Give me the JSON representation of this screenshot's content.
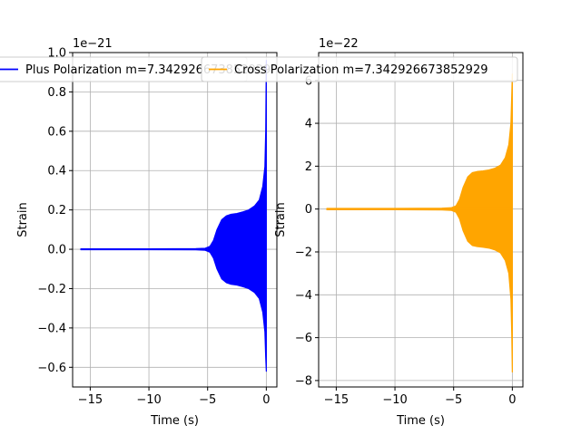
{
  "chart_data": [
    {
      "type": "line",
      "xlabel": "Time (s)",
      "ylabel": "Strain",
      "offset_text": "1e−21",
      "xlim": [
        -16.5,
        0.9
      ],
      "ylim": [
        -0.7,
        1.0
      ],
      "xticks": [
        -15,
        -10,
        -5,
        0
      ],
      "xtick_labels": [
        "−15",
        "−10",
        "−5",
        "0"
      ],
      "yticks": [
        -0.6,
        -0.4,
        -0.2,
        0.0,
        0.2,
        0.4,
        0.6,
        0.8,
        1.0
      ],
      "ytick_labels": [
        "−0.6",
        "−0.4",
        "−0.2",
        "0.0",
        "0.2",
        "0.4",
        "0.6",
        "0.8",
        "1.0"
      ],
      "grid": true,
      "legend_position": "top",
      "series": [
        {
          "name": "Plus Polarization m=7.342926673852929",
          "color": "#0000ff",
          "envelope": {
            "x": [
              -15.8,
              -10,
              -6,
              -5.2,
              -4.8,
              -4.5,
              -4.2,
              -3.8,
              -3.4,
              -3.0,
              -2.5,
              -2.0,
              -1.5,
              -1.0,
              -0.6,
              -0.3,
              -0.12,
              -0.05,
              0.0
            ],
            "upper": [
              0.002,
              0.002,
              0.003,
              0.005,
              0.015,
              0.045,
              0.1,
              0.15,
              0.17,
              0.178,
              0.182,
              0.19,
              0.2,
              0.22,
              0.25,
              0.32,
              0.42,
              0.6,
              0.96
            ],
            "lower": [
              -0.002,
              -0.002,
              -0.003,
              -0.005,
              -0.015,
              -0.045,
              -0.1,
              -0.15,
              -0.17,
              -0.178,
              -0.182,
              -0.19,
              -0.2,
              -0.22,
              -0.25,
              -0.32,
              -0.42,
              -0.55,
              -0.62
            ]
          }
        }
      ]
    },
    {
      "type": "line",
      "xlabel": "Time (s)",
      "ylabel": "Strain",
      "offset_text": "1e−22",
      "xlim": [
        -16.5,
        0.9
      ],
      "ylim": [
        -8.3,
        7.3
      ],
      "xticks": [
        -15,
        -10,
        -5,
        0
      ],
      "xtick_labels": [
        "−15",
        "−10",
        "−5",
        "0"
      ],
      "yticks": [
        -8,
        -6,
        -4,
        -2,
        0,
        2,
        4,
        6
      ],
      "ytick_labels": [
        "−8",
        "−6",
        "−4",
        "−2",
        "0",
        "2",
        "4",
        "6"
      ],
      "grid": true,
      "legend_position": "top",
      "series": [
        {
          "name": "Cross Polarization m=7.342926673852929",
          "color": "#ffa500",
          "envelope": {
            "x": [
              -15.8,
              -10,
              -6,
              -5.2,
              -4.8,
              -4.5,
              -4.2,
              -3.8,
              -3.4,
              -3.0,
              -2.5,
              -2.0,
              -1.5,
              -1.0,
              -0.6,
              -0.3,
              -0.12,
              -0.05,
              0.0
            ],
            "upper": [
              0.03,
              0.03,
              0.04,
              0.06,
              0.15,
              0.45,
              1.0,
              1.5,
              1.7,
              1.75,
              1.78,
              1.82,
              1.9,
              2.05,
              2.4,
              3.0,
              4.0,
              5.3,
              6.3
            ],
            "lower": [
              -0.03,
              -0.03,
              -0.04,
              -0.06,
              -0.15,
              -0.45,
              -1.0,
              -1.5,
              -1.7,
              -1.75,
              -1.78,
              -1.82,
              -1.9,
              -2.05,
              -2.4,
              -3.0,
              -4.2,
              -5.8,
              -7.6
            ]
          }
        }
      ]
    }
  ]
}
